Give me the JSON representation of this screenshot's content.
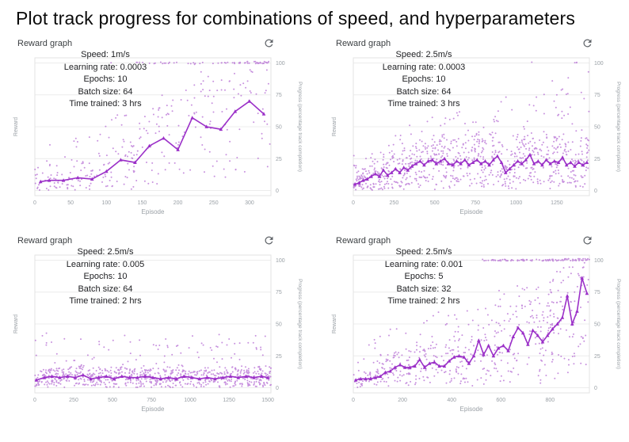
{
  "page": {
    "title": "Plot track progress for combinations of speed, and hyperparameters"
  },
  "colors": {
    "line": "#9b30c8",
    "scatter": "#a64ecb",
    "grid": "#ececec",
    "plot_border": "#e3e3e3",
    "axis_text": "#9aa0a6",
    "panel_title_text": "#3c4043",
    "annotation_text": "#202124",
    "icon": "#5f6368"
  },
  "axes": {
    "x_label": "Episode",
    "y_left_label": "Reward",
    "y_right_label": "Progress (percentage track completion)",
    "y_right_ticks": [
      0,
      25,
      50,
      75,
      100
    ]
  },
  "panels": [
    {
      "title": "Reward graph",
      "annotation": [
        "Speed: 1m/s",
        "Learning rate: 0.0003",
        "Epochs: 10",
        "Batch size: 64",
        "Time trained: 3 hrs"
      ],
      "chart_data": {
        "type": "scatter",
        "xlabel": "Episode",
        "ylabel_left": "Reward",
        "ylabel_right": "Progress (percentage track completion)",
        "x_max": 330,
        "x_ticks": [
          0,
          50,
          100,
          150,
          200,
          250,
          300
        ],
        "ylim": [
          0,
          100
        ],
        "trend_line": [
          [
            8,
            7
          ],
          [
            20,
            8
          ],
          [
            40,
            8
          ],
          [
            60,
            10
          ],
          [
            80,
            9
          ],
          [
            100,
            15
          ],
          [
            120,
            24
          ],
          [
            140,
            22
          ],
          [
            160,
            35
          ],
          [
            180,
            41
          ],
          [
            200,
            32
          ],
          [
            220,
            57
          ],
          [
            240,
            50
          ],
          [
            260,
            48
          ],
          [
            280,
            62
          ],
          [
            300,
            70
          ],
          [
            320,
            60
          ]
        ],
        "scatter": {
          "count": 300,
          "seed": 11,
          "high_fraction": 0.3,
          "high_max": 100,
          "high_scale_with_x": true,
          "top100_count": 55,
          "top100_start": 0.3
        }
      }
    },
    {
      "title": "Reward graph",
      "annotation": [
        "Speed: 2.5m/s",
        "Learning rate: 0.0003",
        "Epochs: 10",
        "Batch size: 64",
        "Time trained: 3 hrs"
      ],
      "chart_data": {
        "type": "scatter",
        "xlabel": "Episode",
        "ylabel_left": "Reward",
        "ylabel_right": "Progress (percentage track completion)",
        "x_max": 1450,
        "x_ticks": [
          0,
          250,
          500,
          750,
          1000,
          1250
        ],
        "ylim": [
          0,
          100
        ],
        "trend_line": [
          [
            10,
            5
          ],
          [
            35,
            6
          ],
          [
            60,
            8
          ],
          [
            85,
            9
          ],
          [
            110,
            11
          ],
          [
            135,
            13
          ],
          [
            160,
            11
          ],
          [
            185,
            16
          ],
          [
            210,
            12
          ],
          [
            235,
            14
          ],
          [
            260,
            17
          ],
          [
            285,
            14
          ],
          [
            310,
            18
          ],
          [
            335,
            16
          ],
          [
            360,
            19
          ],
          [
            385,
            21
          ],
          [
            410,
            23
          ],
          [
            435,
            20
          ],
          [
            460,
            23
          ],
          [
            485,
            24
          ],
          [
            510,
            21
          ],
          [
            535,
            23
          ],
          [
            560,
            25
          ],
          [
            585,
            21
          ],
          [
            610,
            20
          ],
          [
            635,
            23
          ],
          [
            660,
            21
          ],
          [
            685,
            24
          ],
          [
            710,
            20
          ],
          [
            735,
            22
          ],
          [
            760,
            24
          ],
          [
            785,
            21
          ],
          [
            810,
            23
          ],
          [
            835,
            20
          ],
          [
            860,
            24
          ],
          [
            885,
            27
          ],
          [
            910,
            22
          ],
          [
            935,
            14
          ],
          [
            960,
            17
          ],
          [
            985,
            20
          ],
          [
            1010,
            23
          ],
          [
            1035,
            21
          ],
          [
            1060,
            24
          ],
          [
            1085,
            28
          ],
          [
            1110,
            21
          ],
          [
            1135,
            23
          ],
          [
            1160,
            20
          ],
          [
            1185,
            24
          ],
          [
            1210,
            21
          ],
          [
            1235,
            23
          ],
          [
            1260,
            22
          ],
          [
            1285,
            26
          ],
          [
            1310,
            20
          ],
          [
            1335,
            22
          ],
          [
            1360,
            19
          ],
          [
            1385,
            22
          ],
          [
            1410,
            20
          ],
          [
            1435,
            22
          ]
        ],
        "scatter": {
          "count": 850,
          "seed": 22,
          "high_fraction": 0.18,
          "high_max": 96,
          "high_scale_with_x": true,
          "top100_count": 4,
          "top100_start": 0.35
        }
      }
    },
    {
      "title": "Reward graph",
      "annotation": [
        "Speed: 2.5m/s",
        "Learning rate: 0.005",
        "Epochs: 10",
        "Batch size: 64",
        "Time trained: 2 hrs"
      ],
      "chart_data": {
        "type": "scatter",
        "xlabel": "Episode",
        "ylabel_left": "Reward",
        "ylabel_right": "Progress (percentage track completion)",
        "x_max": 1520,
        "x_ticks": [
          0,
          250,
          500,
          750,
          1000,
          1250,
          1500
        ],
        "ylim": [
          0,
          100
        ],
        "trend_line": [
          [
            10,
            6
          ],
          [
            60,
            8
          ],
          [
            110,
            9
          ],
          [
            160,
            8
          ],
          [
            210,
            9
          ],
          [
            260,
            8
          ],
          [
            310,
            10
          ],
          [
            360,
            7
          ],
          [
            410,
            8
          ],
          [
            460,
            9
          ],
          [
            510,
            7
          ],
          [
            560,
            9
          ],
          [
            610,
            8
          ],
          [
            660,
            8
          ],
          [
            710,
            9
          ],
          [
            760,
            8
          ],
          [
            810,
            7
          ],
          [
            860,
            8
          ],
          [
            910,
            7
          ],
          [
            960,
            9
          ],
          [
            1010,
            8
          ],
          [
            1060,
            7
          ],
          [
            1110,
            8
          ],
          [
            1160,
            7
          ],
          [
            1210,
            8
          ],
          [
            1260,
            9
          ],
          [
            1310,
            8
          ],
          [
            1360,
            9
          ],
          [
            1410,
            8
          ],
          [
            1460,
            9
          ],
          [
            1500,
            8
          ]
        ],
        "scatter": {
          "count": 780,
          "seed": 33,
          "high_fraction": 0.12,
          "high_max": 42,
          "high_scale_with_x": false,
          "top100_count": 0,
          "top100_start": 1
        }
      }
    },
    {
      "title": "Reward graph",
      "annotation": [
        "Speed: 2.5m/s",
        "Learning rate: 0.001",
        "Epochs: 5",
        "Batch size: 32",
        "Time trained: 2 hrs"
      ],
      "chart_data": {
        "type": "scatter",
        "xlabel": "Episode",
        "ylabel_left": "Reward",
        "ylabel_right": "Progress (percentage track completion)",
        "x_max": 960,
        "x_ticks": [
          0,
          200,
          400,
          600,
          800
        ],
        "ylim": [
          0,
          100
        ],
        "trend_line": [
          [
            10,
            6
          ],
          [
            30,
            7
          ],
          [
            50,
            7
          ],
          [
            70,
            7
          ],
          [
            90,
            8
          ],
          [
            110,
            9
          ],
          [
            130,
            12
          ],
          [
            150,
            13
          ],
          [
            170,
            16
          ],
          [
            190,
            18
          ],
          [
            210,
            16
          ],
          [
            230,
            16
          ],
          [
            250,
            17
          ],
          [
            270,
            22
          ],
          [
            290,
            16
          ],
          [
            310,
            19
          ],
          [
            330,
            20
          ],
          [
            350,
            17
          ],
          [
            370,
            17
          ],
          [
            390,
            21
          ],
          [
            410,
            24
          ],
          [
            430,
            25
          ],
          [
            450,
            24
          ],
          [
            470,
            19
          ],
          [
            490,
            25
          ],
          [
            510,
            37
          ],
          [
            530,
            26
          ],
          [
            550,
            33
          ],
          [
            570,
            25
          ],
          [
            590,
            31
          ],
          [
            610,
            33
          ],
          [
            630,
            29
          ],
          [
            650,
            40
          ],
          [
            670,
            47
          ],
          [
            690,
            43
          ],
          [
            710,
            34
          ],
          [
            730,
            45
          ],
          [
            750,
            41
          ],
          [
            770,
            36
          ],
          [
            790,
            41
          ],
          [
            810,
            46
          ],
          [
            830,
            50
          ],
          [
            850,
            55
          ],
          [
            870,
            72
          ],
          [
            890,
            50
          ],
          [
            910,
            60
          ],
          [
            930,
            86
          ],
          [
            950,
            74
          ]
        ],
        "scatter": {
          "count": 540,
          "seed": 44,
          "high_fraction": 0.25,
          "high_max": 100,
          "high_scale_with_x": true,
          "top100_count": 90,
          "top100_start": 0.45
        }
      }
    }
  ]
}
